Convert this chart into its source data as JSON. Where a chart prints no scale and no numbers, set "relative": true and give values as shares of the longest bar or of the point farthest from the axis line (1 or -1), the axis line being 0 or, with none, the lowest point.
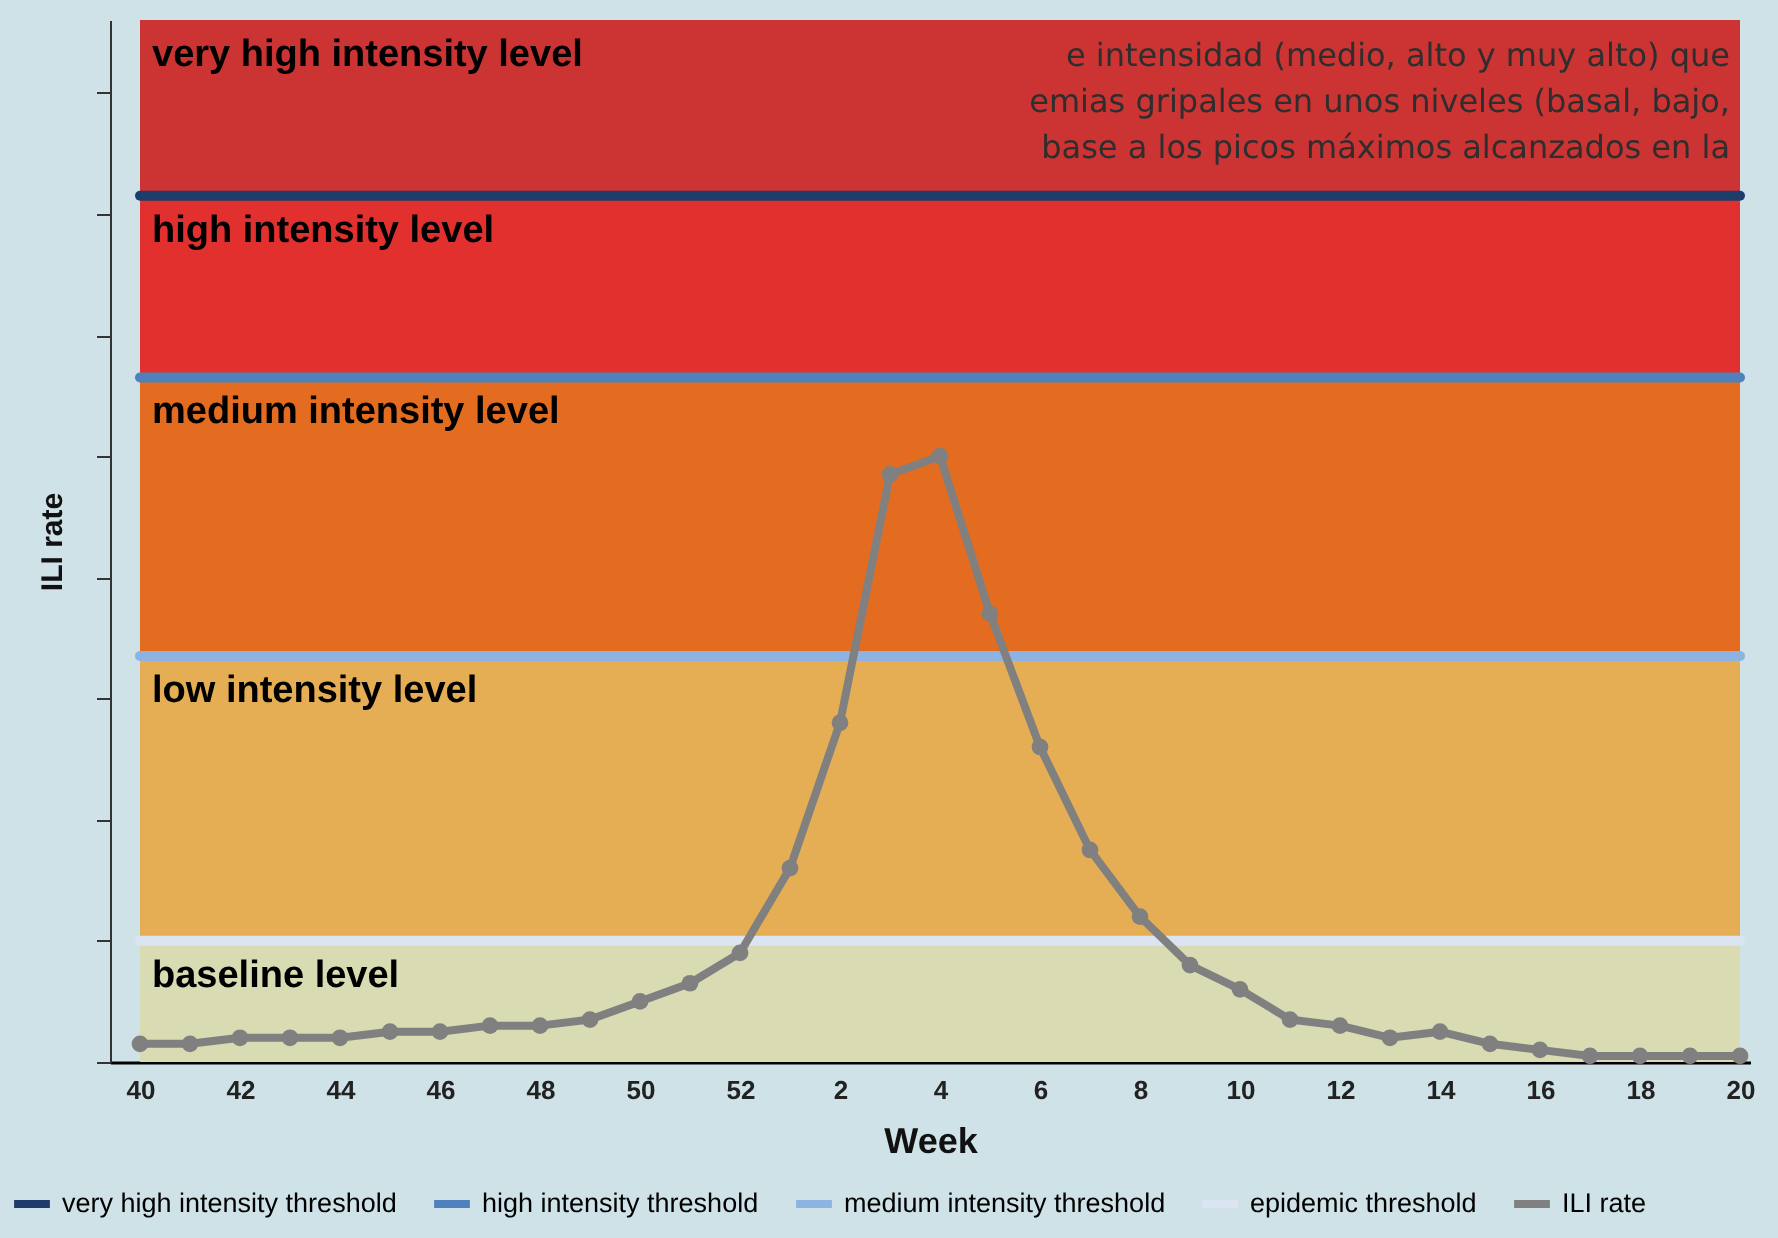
{
  "chart_data": {
    "type": "line",
    "relative": true,
    "xlabel": "Week",
    "ylabel": "ILI rate",
    "categories": [
      "40",
      null,
      "42",
      null,
      "44",
      null,
      "46",
      null,
      "48",
      null,
      "50",
      null,
      "52",
      null,
      "2",
      null,
      "4",
      null,
      "6",
      null,
      "8",
      null,
      "10",
      null,
      "12",
      null,
      "14",
      null,
      "16",
      null,
      "18",
      null,
      "20"
    ],
    "series": [
      {
        "name": "ILI rate",
        "color": "#808080",
        "values": [
          0.03,
          0.03,
          0.04,
          0.04,
          0.04,
          0.05,
          0.05,
          0.06,
          0.06,
          0.07,
          0.1,
          0.13,
          0.18,
          0.32,
          0.56,
          0.97,
          1,
          0.74,
          0.52,
          0.35,
          0.24,
          0.16,
          0.12,
          0.07,
          0.06,
          0.04,
          0.05,
          0.03,
          0.02,
          0.01,
          0.01,
          0.01,
          0.01
        ]
      }
    ],
    "marker": "circle",
    "line_style": "solid",
    "legend": "bottom",
    "bands": [
      {
        "axis": "y",
        "from": 0,
        "to": 0.2,
        "label": "baseline level",
        "color": "#d9dbb3"
      },
      {
        "axis": "y",
        "from": 0.2,
        "to": 0.67,
        "label": "low intensity level",
        "color": "#e5ae55"
      },
      {
        "axis": "y",
        "from": 0.67,
        "to": 1.13,
        "label": "medium intensity level",
        "color": "#e36c21"
      },
      {
        "axis": "y",
        "from": 1.13,
        "to": 1.43,
        "label": "high intensity level",
        "color": "#e2302f"
      },
      {
        "axis": "y",
        "from": 1.43,
        "to": 1.72,
        "label": "very high intensity level",
        "color": "#cc3333"
      }
    ],
    "ref_lines": [
      {
        "axis": "y",
        "value": 1.43,
        "label": "very high intensity threshold",
        "color": "#1f3d6b"
      },
      {
        "axis": "y",
        "value": 1.13,
        "label": "high intensity threshold",
        "color": "#4f81bd"
      },
      {
        "axis": "y",
        "value": 0.67,
        "label": "medium intensity threshold",
        "color": "#8db3e2"
      },
      {
        "axis": "y",
        "value": 0.2,
        "label": "epidemic threshold",
        "color": "#dbe5f1"
      }
    ],
    "annotations": [
      "e intensidad (medio, alto y muy alto) que",
      "emias gripales en unos niveles (basal, bajo,",
      "base a los picos máximos alcanzados en la"
    ]
  }
}
